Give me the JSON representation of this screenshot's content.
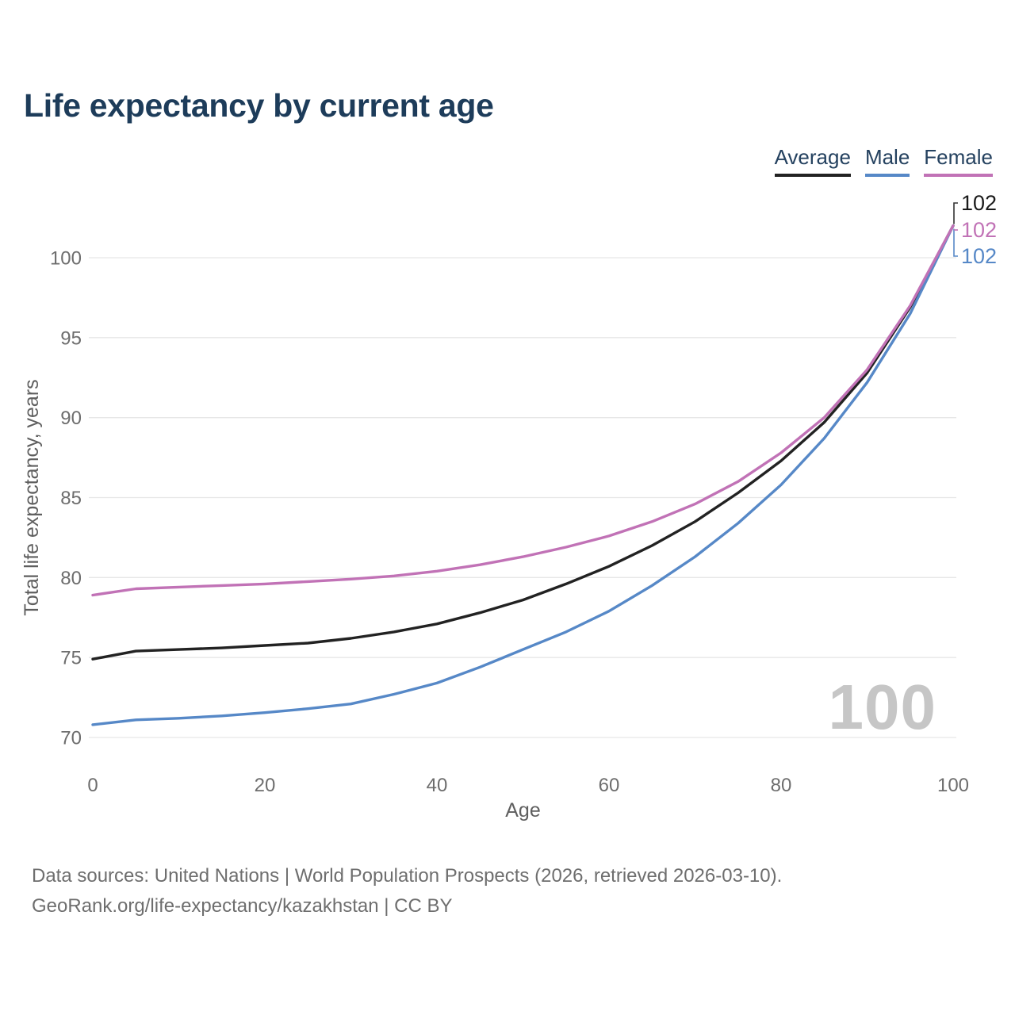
{
  "title": "Life expectancy by current age",
  "legend": {
    "items": [
      {
        "label": "Average",
        "color": "#222222"
      },
      {
        "label": "Male",
        "color": "#5688c7"
      },
      {
        "label": "Female",
        "color": "#c172b6"
      }
    ]
  },
  "watermark": "100",
  "footer": {
    "line1": "Data sources: United Nations | World Population Prospects (2026, retrieved 2026-03-10).",
    "line2": "GeoRank.org/life-expectancy/kazakhstan | CC BY"
  },
  "colors": {
    "title_text": "#1d3c5a",
    "axis_text": "#6d6d6d",
    "gridline": "#e7e7e7",
    "watermark": "#c6c6c6",
    "source_text": "#6e6e6e"
  },
  "chart_data": {
    "type": "line",
    "title": "Life expectancy by current age",
    "xlabel": "Age",
    "ylabel": "Total life expectancy, years",
    "xlim": [
      0,
      100
    ],
    "ylim": [
      70,
      102
    ],
    "xticks": [
      0,
      20,
      40,
      60,
      80,
      100
    ],
    "yticks": [
      70,
      75,
      80,
      85,
      90,
      95,
      100
    ],
    "grid": true,
    "legend_position": "top-right",
    "x": [
      0,
      5,
      10,
      15,
      20,
      25,
      30,
      35,
      40,
      45,
      50,
      55,
      60,
      65,
      70,
      75,
      80,
      85,
      90,
      95,
      100
    ],
    "series": [
      {
        "name": "Average",
        "color": "#222222",
        "end_label": "102",
        "end_label_row": 0,
        "values": [
          74.9,
          75.4,
          75.5,
          75.6,
          75.75,
          75.9,
          76.2,
          76.6,
          77.1,
          77.8,
          78.6,
          79.6,
          80.7,
          82.0,
          83.5,
          85.3,
          87.3,
          89.7,
          92.8,
          96.9,
          102
        ]
      },
      {
        "name": "Male",
        "color": "#5688c7",
        "end_label": "102",
        "end_label_row": 2,
        "values": [
          70.8,
          71.1,
          71.2,
          71.35,
          71.55,
          71.8,
          72.1,
          72.7,
          73.4,
          74.4,
          75.5,
          76.6,
          77.9,
          79.5,
          81.3,
          83.4,
          85.8,
          88.7,
          92.2,
          96.5,
          102
        ]
      },
      {
        "name": "Female",
        "color": "#c172b6",
        "end_label": "102",
        "end_label_row": 1,
        "values": [
          78.9,
          79.3,
          79.4,
          79.5,
          79.6,
          79.75,
          79.9,
          80.1,
          80.4,
          80.8,
          81.3,
          81.9,
          82.6,
          83.5,
          84.6,
          86.0,
          87.8,
          90.0,
          93.0,
          97.0,
          102
        ]
      }
    ]
  }
}
